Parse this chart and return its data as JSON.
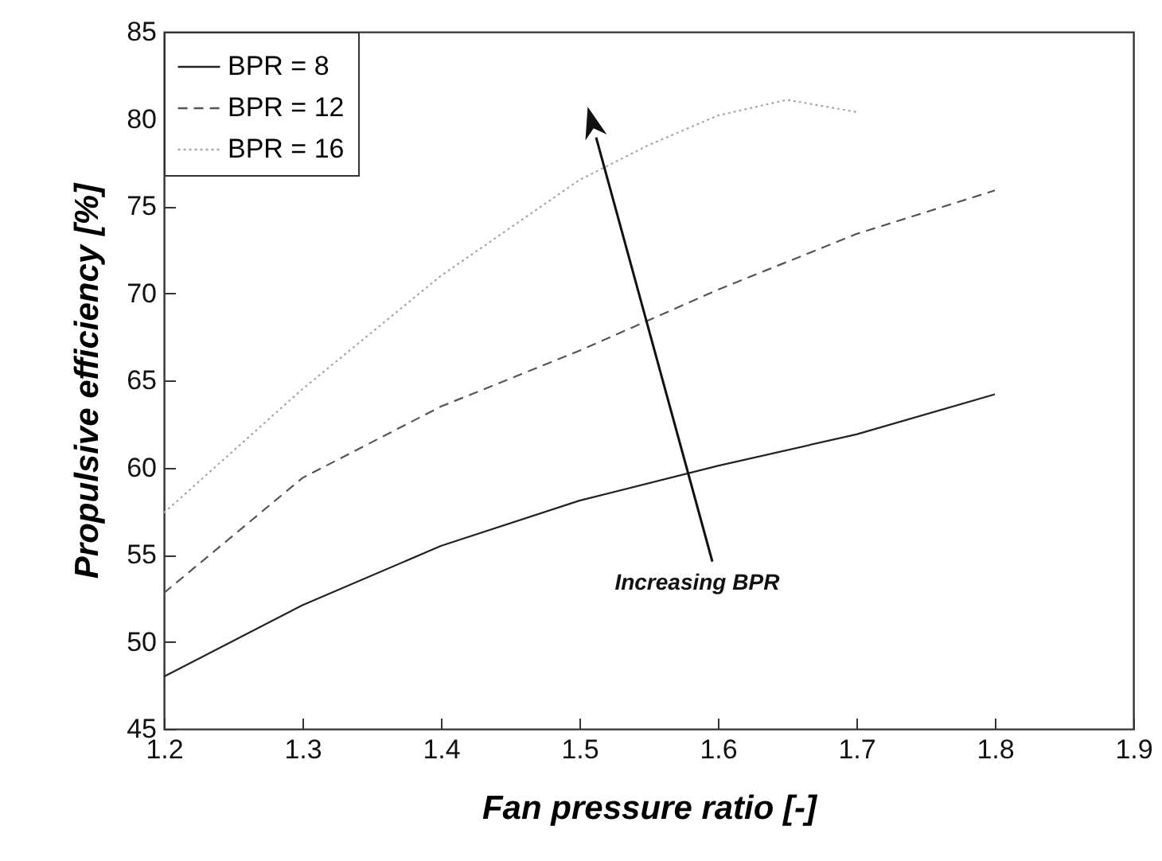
{
  "chart_data": {
    "type": "line",
    "xlabel": "Fan pressure ratio [-]",
    "ylabel": "Propulsive efficiency [%]",
    "x": [
      1.2,
      1.3,
      1.4,
      1.5,
      1.55,
      1.6,
      1.65,
      1.7,
      1.8
    ],
    "series": [
      {
        "name": "BPR = 8",
        "color": "#222222",
        "line_style": "solid",
        "values": [
          48.0,
          52.1,
          55.5,
          58.1,
          null,
          60.1,
          null,
          61.9,
          64.2
        ]
      },
      {
        "name": "BPR = 12",
        "color": "#555555",
        "line_style": "dashed",
        "values": [
          52.8,
          59.4,
          63.5,
          66.7,
          null,
          70.2,
          null,
          73.4,
          75.9
        ]
      },
      {
        "name": "BPR = 16",
        "color": "#a8a8a8",
        "line_style": "dotted",
        "values": [
          57.4,
          64.5,
          71.0,
          76.5,
          78.5,
          80.2,
          81.1,
          80.4,
          null
        ]
      }
    ],
    "xlim": [
      1.2,
      1.9
    ],
    "xticks": [
      1.2,
      1.3,
      1.4,
      1.5,
      1.6,
      1.7,
      1.8,
      1.9
    ],
    "ylim": [
      45,
      85
    ],
    "yticks": [
      45,
      50,
      55,
      60,
      65,
      70,
      75,
      80,
      85
    ],
    "legend": "top left",
    "grid": false,
    "annotations": [
      "Increasing BPR"
    ]
  }
}
